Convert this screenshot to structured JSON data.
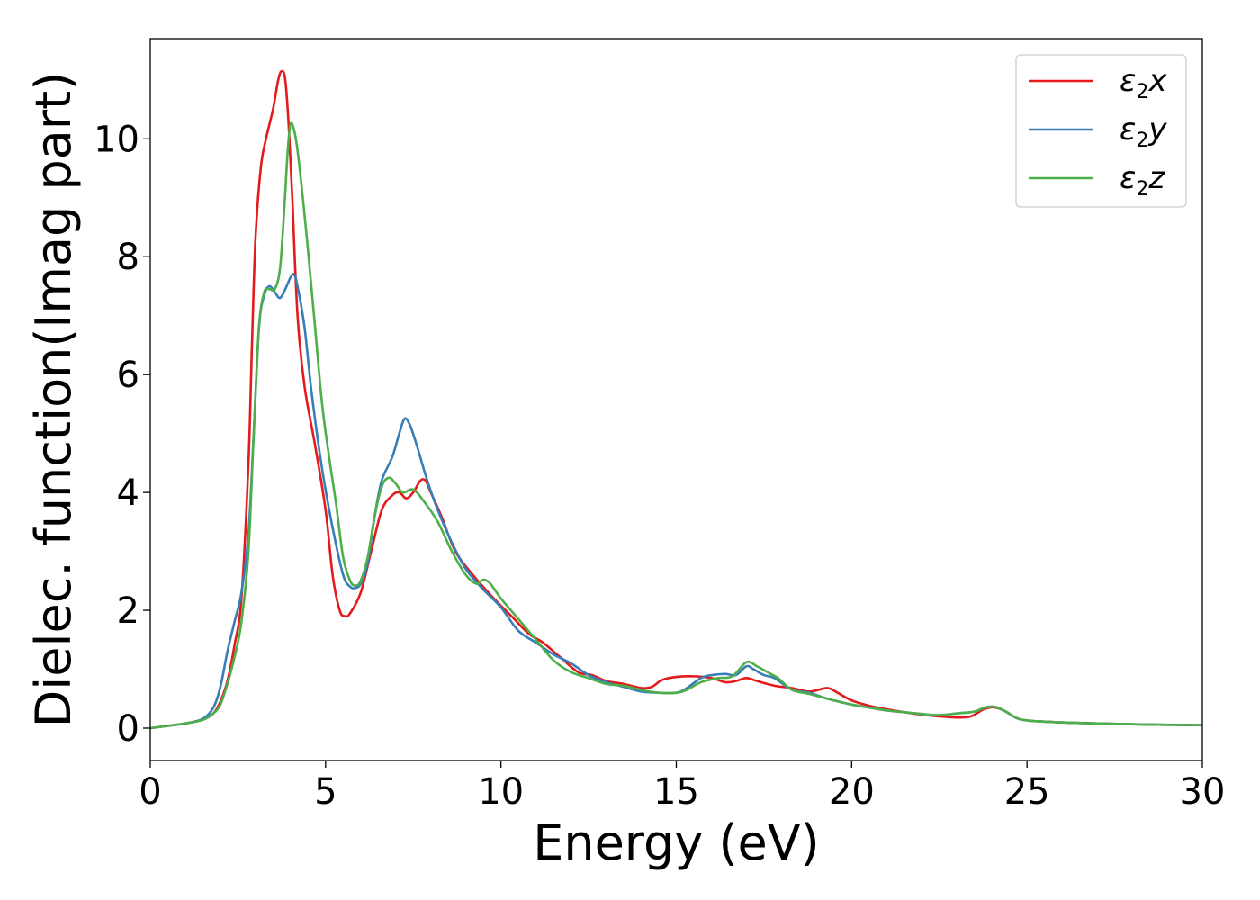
{
  "chart_data": {
    "type": "line",
    "xlabel": "Energy (eV)",
    "ylabel": "Dielec. function(Imag part)",
    "xlim": [
      0,
      30
    ],
    "ylim": [
      -0.55,
      11.7
    ],
    "xticks": [
      0,
      5,
      10,
      15,
      20,
      25,
      30
    ],
    "yticks": [
      0,
      2,
      4,
      6,
      8,
      10
    ],
    "grid": false,
    "legend_position": "top-right",
    "series": [
      {
        "name": "ε2x",
        "label": {
          "base": "ε",
          "sub": "2",
          "axis": "x"
        },
        "color": "#e41a1c",
        "points": [
          [
            0,
            0
          ],
          [
            1,
            0.08
          ],
          [
            1.5,
            0.15
          ],
          [
            1.8,
            0.25
          ],
          [
            2.0,
            0.45
          ],
          [
            2.2,
            0.8
          ],
          [
            2.4,
            1.4
          ],
          [
            2.6,
            2.2
          ],
          [
            2.8,
            4.5
          ],
          [
            2.9,
            6.5
          ],
          [
            3.0,
            8.3
          ],
          [
            3.15,
            9.5
          ],
          [
            3.3,
            10.0
          ],
          [
            3.5,
            10.5
          ],
          [
            3.65,
            11.0
          ],
          [
            3.75,
            11.15
          ],
          [
            3.85,
            11.0
          ],
          [
            3.95,
            10.2
          ],
          [
            4.05,
            9.0
          ],
          [
            4.2,
            7.0
          ],
          [
            4.4,
            5.8
          ],
          [
            4.7,
            4.8
          ],
          [
            5.0,
            3.7
          ],
          [
            5.2,
            2.6
          ],
          [
            5.4,
            2.0
          ],
          [
            5.55,
            1.9
          ],
          [
            5.7,
            1.95
          ],
          [
            6.0,
            2.3
          ],
          [
            6.3,
            3.0
          ],
          [
            6.6,
            3.7
          ],
          [
            6.9,
            3.95
          ],
          [
            7.1,
            4.0
          ],
          [
            7.3,
            3.9
          ],
          [
            7.5,
            4.0
          ],
          [
            7.7,
            4.2
          ],
          [
            7.85,
            4.2
          ],
          [
            8.0,
            4.0
          ],
          [
            8.3,
            3.6
          ],
          [
            8.7,
            3.0
          ],
          [
            9.2,
            2.6
          ],
          [
            9.8,
            2.2
          ],
          [
            10.3,
            1.9
          ],
          [
            10.8,
            1.6
          ],
          [
            11.2,
            1.45
          ],
          [
            11.7,
            1.2
          ],
          [
            12.2,
            0.95
          ],
          [
            12.6,
            0.9
          ],
          [
            13.0,
            0.8
          ],
          [
            13.5,
            0.75
          ],
          [
            14.0,
            0.68
          ],
          [
            14.3,
            0.7
          ],
          [
            14.6,
            0.82
          ],
          [
            15.0,
            0.87
          ],
          [
            15.5,
            0.88
          ],
          [
            16.0,
            0.85
          ],
          [
            16.4,
            0.78
          ],
          [
            16.7,
            0.8
          ],
          [
            17.0,
            0.85
          ],
          [
            17.3,
            0.8
          ],
          [
            17.8,
            0.72
          ],
          [
            18.3,
            0.68
          ],
          [
            18.8,
            0.62
          ],
          [
            19.3,
            0.68
          ],
          [
            19.6,
            0.6
          ],
          [
            20.0,
            0.47
          ],
          [
            20.5,
            0.38
          ],
          [
            21.0,
            0.32
          ],
          [
            21.5,
            0.27
          ],
          [
            22.0,
            0.23
          ],
          [
            22.5,
            0.2
          ],
          [
            23.0,
            0.18
          ],
          [
            23.4,
            0.2
          ],
          [
            23.8,
            0.33
          ],
          [
            24.1,
            0.35
          ],
          [
            24.4,
            0.28
          ],
          [
            24.8,
            0.15
          ],
          [
            25.5,
            0.11
          ],
          [
            27,
            0.08
          ],
          [
            28.5,
            0.06
          ],
          [
            30,
            0.05
          ]
        ]
      },
      {
        "name": "ε2y",
        "label": {
          "base": "ε",
          "sub": "2",
          "axis": "y"
        },
        "color": "#377eb8",
        "points": [
          [
            0,
            0
          ],
          [
            1,
            0.08
          ],
          [
            1.5,
            0.16
          ],
          [
            1.8,
            0.35
          ],
          [
            2.0,
            0.7
          ],
          [
            2.2,
            1.3
          ],
          [
            2.4,
            1.8
          ],
          [
            2.6,
            2.3
          ],
          [
            2.8,
            3.3
          ],
          [
            2.95,
            5.0
          ],
          [
            3.1,
            6.8
          ],
          [
            3.25,
            7.35
          ],
          [
            3.4,
            7.5
          ],
          [
            3.55,
            7.4
          ],
          [
            3.7,
            7.3
          ],
          [
            3.85,
            7.45
          ],
          [
            4.0,
            7.65
          ],
          [
            4.1,
            7.7
          ],
          [
            4.2,
            7.5
          ],
          [
            4.4,
            6.8
          ],
          [
            4.6,
            5.7
          ],
          [
            4.9,
            4.4
          ],
          [
            5.2,
            3.4
          ],
          [
            5.5,
            2.6
          ],
          [
            5.7,
            2.4
          ],
          [
            5.85,
            2.38
          ],
          [
            6.0,
            2.45
          ],
          [
            6.2,
            2.8
          ],
          [
            6.4,
            3.6
          ],
          [
            6.6,
            4.2
          ],
          [
            6.9,
            4.6
          ],
          [
            7.1,
            5.0
          ],
          [
            7.25,
            5.25
          ],
          [
            7.4,
            5.15
          ],
          [
            7.6,
            4.8
          ],
          [
            7.9,
            4.2
          ],
          [
            8.2,
            3.7
          ],
          [
            8.6,
            3.15
          ],
          [
            9.0,
            2.7
          ],
          [
            9.5,
            2.35
          ],
          [
            10.0,
            2.05
          ],
          [
            10.5,
            1.65
          ],
          [
            11.0,
            1.45
          ],
          [
            11.5,
            1.25
          ],
          [
            12.0,
            1.1
          ],
          [
            12.5,
            0.9
          ],
          [
            13.0,
            0.78
          ],
          [
            13.5,
            0.7
          ],
          [
            14.0,
            0.62
          ],
          [
            14.5,
            0.6
          ],
          [
            15.0,
            0.6
          ],
          [
            15.3,
            0.68
          ],
          [
            15.7,
            0.85
          ],
          [
            16.0,
            0.9
          ],
          [
            16.4,
            0.92
          ],
          [
            16.7,
            0.9
          ],
          [
            17.0,
            1.05
          ],
          [
            17.2,
            1.0
          ],
          [
            17.5,
            0.9
          ],
          [
            17.8,
            0.85
          ],
          [
            18.3,
            0.65
          ],
          [
            18.8,
            0.6
          ],
          [
            19.3,
            0.5
          ],
          [
            20.0,
            0.4
          ],
          [
            20.5,
            0.35
          ],
          [
            21.0,
            0.3
          ],
          [
            21.5,
            0.27
          ],
          [
            22.0,
            0.24
          ],
          [
            22.5,
            0.22
          ],
          [
            23.0,
            0.25
          ],
          [
            23.5,
            0.28
          ],
          [
            23.8,
            0.35
          ],
          [
            24.1,
            0.36
          ],
          [
            24.4,
            0.28
          ],
          [
            24.8,
            0.15
          ],
          [
            25.5,
            0.11
          ],
          [
            27,
            0.08
          ],
          [
            28.5,
            0.06
          ],
          [
            30,
            0.05
          ]
        ]
      },
      {
        "name": "ε2z",
        "label": {
          "base": "ε",
          "sub": "2",
          "axis": "z"
        },
        "color": "#4daf4a",
        "points": [
          [
            0,
            0
          ],
          [
            1,
            0.08
          ],
          [
            1.5,
            0.14
          ],
          [
            1.8,
            0.25
          ],
          [
            2.0,
            0.4
          ],
          [
            2.2,
            0.75
          ],
          [
            2.4,
            1.2
          ],
          [
            2.6,
            1.8
          ],
          [
            2.8,
            3.0
          ],
          [
            2.95,
            5.0
          ],
          [
            3.1,
            6.8
          ],
          [
            3.25,
            7.4
          ],
          [
            3.4,
            7.45
          ],
          [
            3.55,
            7.45
          ],
          [
            3.7,
            7.8
          ],
          [
            3.82,
            8.8
          ],
          [
            3.92,
            9.8
          ],
          [
            4.0,
            10.25
          ],
          [
            4.1,
            10.15
          ],
          [
            4.2,
            9.8
          ],
          [
            4.35,
            9.0
          ],
          [
            4.5,
            8.1
          ],
          [
            4.7,
            6.8
          ],
          [
            4.9,
            5.5
          ],
          [
            5.1,
            4.6
          ],
          [
            5.3,
            3.8
          ],
          [
            5.5,
            2.9
          ],
          [
            5.7,
            2.5
          ],
          [
            5.85,
            2.42
          ],
          [
            6.0,
            2.5
          ],
          [
            6.2,
            2.9
          ],
          [
            6.4,
            3.6
          ],
          [
            6.6,
            4.1
          ],
          [
            6.8,
            4.25
          ],
          [
            7.0,
            4.15
          ],
          [
            7.2,
            4.0
          ],
          [
            7.5,
            4.05
          ],
          [
            7.8,
            3.85
          ],
          [
            8.2,
            3.5
          ],
          [
            8.6,
            3.0
          ],
          [
            9.0,
            2.6
          ],
          [
            9.3,
            2.45
          ],
          [
            9.5,
            2.52
          ],
          [
            9.7,
            2.45
          ],
          [
            10.0,
            2.2
          ],
          [
            10.5,
            1.85
          ],
          [
            11.0,
            1.5
          ],
          [
            11.5,
            1.15
          ],
          [
            12.0,
            0.95
          ],
          [
            12.5,
            0.85
          ],
          [
            13.0,
            0.75
          ],
          [
            13.5,
            0.72
          ],
          [
            14.0,
            0.65
          ],
          [
            14.5,
            0.6
          ],
          [
            15.0,
            0.6
          ],
          [
            15.3,
            0.65
          ],
          [
            15.7,
            0.78
          ],
          [
            16.2,
            0.85
          ],
          [
            16.6,
            0.88
          ],
          [
            17.0,
            1.12
          ],
          [
            17.3,
            1.05
          ],
          [
            17.6,
            0.95
          ],
          [
            17.9,
            0.85
          ],
          [
            18.3,
            0.65
          ],
          [
            18.8,
            0.58
          ],
          [
            19.3,
            0.5
          ],
          [
            20.0,
            0.4
          ],
          [
            20.5,
            0.35
          ],
          [
            21.0,
            0.3
          ],
          [
            21.5,
            0.27
          ],
          [
            22.0,
            0.24
          ],
          [
            22.5,
            0.22
          ],
          [
            23.0,
            0.25
          ],
          [
            23.5,
            0.28
          ],
          [
            23.8,
            0.35
          ],
          [
            24.1,
            0.36
          ],
          [
            24.4,
            0.28
          ],
          [
            24.8,
            0.15
          ],
          [
            25.5,
            0.11
          ],
          [
            27,
            0.08
          ],
          [
            28.5,
            0.06
          ],
          [
            30,
            0.05
          ]
        ]
      }
    ]
  }
}
